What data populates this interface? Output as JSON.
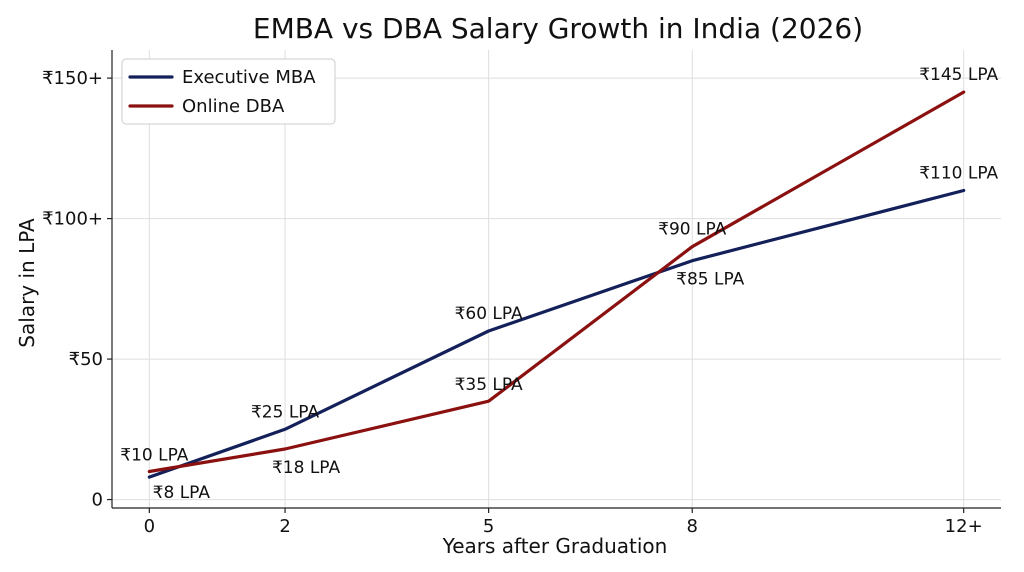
{
  "chart_data": {
    "type": "line",
    "title": "EMBA vs DBA Salary Growth in India (2026)",
    "xlabel": "Years after Graduation",
    "ylabel": "Salary in LPA",
    "x_tick_labels": [
      "0",
      "2",
      "5",
      "8",
      "12+"
    ],
    "x_values": [
      0,
      2,
      5,
      8,
      12
    ],
    "y_tick_labels": [
      "0",
      "₹50",
      "₹100+",
      "₹150+"
    ],
    "y_tick_values": [
      0,
      50,
      100,
      150
    ],
    "ylim": [
      -3,
      160
    ],
    "xlim": [
      -0.55,
      12.55
    ],
    "grid": true,
    "legend_position": "top-left",
    "series": [
      {
        "name": "Executive MBA",
        "color": "#14205a",
        "x": [
          0,
          2,
          5,
          8,
          12
        ],
        "values": [
          8,
          25,
          60,
          85,
          110
        ],
        "labels": [
          "₹8 LPA",
          "₹25 LPA",
          "₹60 LPA",
          "₹85 LPA",
          "₹110 LPA"
        ]
      },
      {
        "name": "Online DBA",
        "color": "#8b1010",
        "x": [
          0,
          2,
          5,
          8,
          12
        ],
        "values": [
          10,
          18,
          35,
          90,
          145
        ],
        "labels": [
          "₹10 LPA",
          "₹18 LPA",
          "₹35 LPA",
          "₹90 LPA",
          "₹145 LPA"
        ]
      }
    ]
  }
}
